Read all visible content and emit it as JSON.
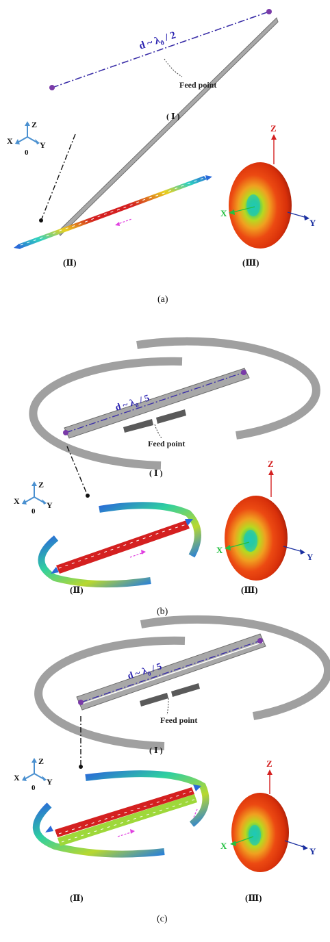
{
  "panels": [
    {
      "caption": "(a)",
      "sub1": "( Ⅰ )",
      "sub2": "(Ⅱ)",
      "sub3": "(Ⅲ)",
      "d_label_prefix": "d ~ λ",
      "d_label_sub": "0",
      "d_label_suffix": " / 2",
      "feed_point": "Feed point"
    },
    {
      "caption": "(b)",
      "sub1": "( Ⅰ )",
      "sub2": "(Ⅱ)",
      "sub3": "(Ⅲ)",
      "d_label_prefix": "d ~ λ",
      "d_label_sub": "0",
      "d_label_suffix": " / 5",
      "feed_point": "Feed point"
    },
    {
      "caption": "(c)",
      "sub1": "( Ⅰ )",
      "sub2": "(Ⅱ)",
      "sub3": "(Ⅲ)",
      "d_label_prefix": "d ~ λ",
      "d_label_sub": "0",
      "d_label_suffix": " / 5",
      "feed_point": "Feed point"
    }
  ],
  "axes": {
    "x": "X",
    "y": "Y",
    "z": "Z",
    "origin": "0"
  },
  "colors": {
    "metal": "#a8a8a8",
    "metal_edge": "#7a7a7a",
    "dimension": "#3b2fa8",
    "feed_pad": "#555555",
    "current_hot": "#d42020",
    "current_cold": "#2a6ad8",
    "pattern_core": "#e83a10",
    "pattern_center": "#29c7a8",
    "axis_z": "#d42020",
    "axis_y": "#1a2fa0",
    "axis_x": "#22c040",
    "arrow_pink": "#e040e0"
  }
}
